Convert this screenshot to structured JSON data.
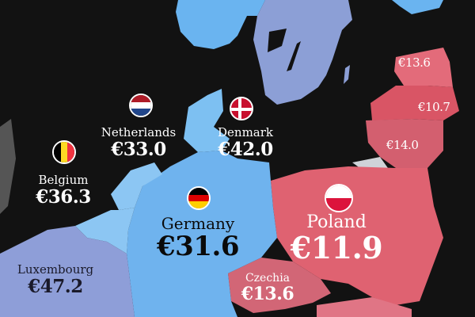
{
  "colors": {
    "background": "#121212",
    "high_price": "#6fb3ee",
    "mid_price": "#8e9ed8",
    "low_price": "#df6271"
  },
  "countries": {
    "netherlands": {
      "name": "Netherlands",
      "value": "€33.0",
      "flag": "netherlands-flag"
    },
    "denmark": {
      "name": "Denmark",
      "value": "€42.0",
      "flag": "denmark-flag"
    },
    "belgium": {
      "name": "Belgium",
      "value": "€36.3",
      "flag": "belgium-flag"
    },
    "germany": {
      "name": "Germany",
      "value": "€31.6",
      "flag": "germany-flag"
    },
    "poland": {
      "name": "Poland",
      "value": "€11.9",
      "flag": "poland-flag"
    },
    "luxembourg": {
      "name": "Luxembourg",
      "value": "€47.2"
    },
    "czechia": {
      "name": "Czechia",
      "value": "€13.6"
    },
    "estonia": {
      "value": "€13.6"
    },
    "latvia": {
      "value": "€10.7"
    },
    "lithuania": {
      "value": "€14.0"
    }
  }
}
